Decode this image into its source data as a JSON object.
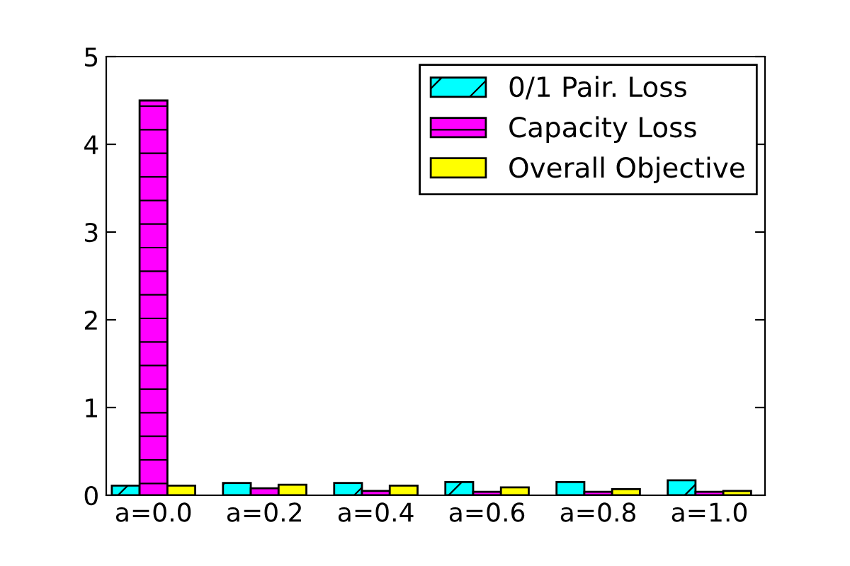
{
  "chart_data": {
    "type": "bar",
    "categories": [
      "a=0.0",
      "a=0.2",
      "a=0.4",
      "a=0.6",
      "a=0.8",
      "a=1.0"
    ],
    "series": [
      {
        "name": "0/1 Pair. Loss",
        "color": "#00ffff",
        "values": [
          0.11,
          0.14,
          0.14,
          0.15,
          0.15,
          0.17
        ]
      },
      {
        "name": "Capacity Loss",
        "color": "#ff00ff",
        "values": [
          4.5,
          0.08,
          0.05,
          0.04,
          0.04,
          0.04
        ]
      },
      {
        "name": "Overall Objective",
        "color": "#ffff00",
        "values": [
          0.11,
          0.12,
          0.11,
          0.09,
          0.07,
          0.05
        ]
      }
    ],
    "ylim": [
      0,
      5
    ],
    "yticks": [
      0,
      1,
      2,
      3,
      4,
      5
    ],
    "legend": "top right",
    "grid": false
  }
}
